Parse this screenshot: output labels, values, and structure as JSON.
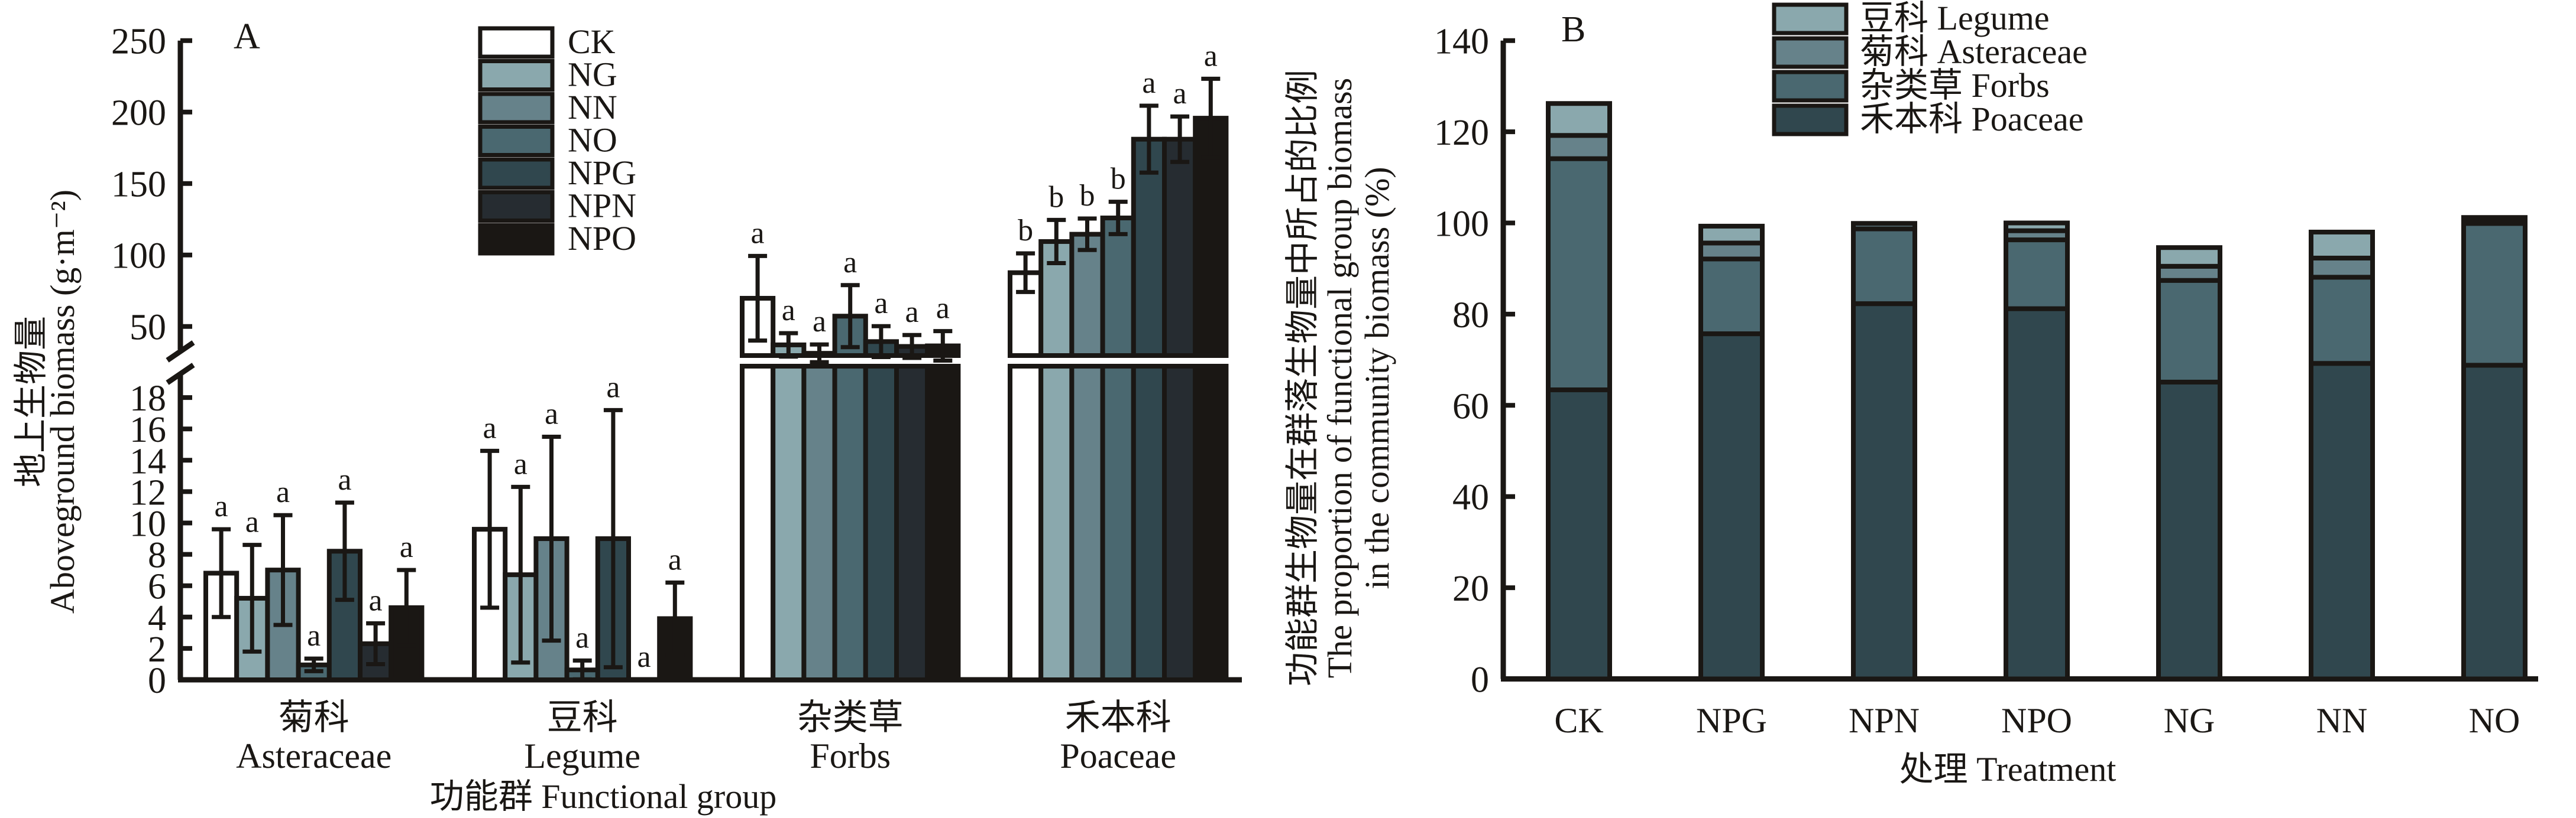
{
  "chart_data": [
    {
      "panel": "A",
      "type": "bar",
      "title": "A",
      "xlabel": "功能群 Functional group",
      "ylabel_cn": "地上生物量",
      "ylabel_en": "Aboveground biomass (g·m⁻²)",
      "y_axis_broken": true,
      "ylim_lower": [
        0,
        18
      ],
      "ylim_upper": [
        30,
        250
      ],
      "yticks_lower": [
        "0",
        "2",
        "4",
        "6",
        "8",
        "10",
        "12",
        "14",
        "16",
        "18"
      ],
      "yticks_upper": [
        "50",
        "100",
        "150",
        "200",
        "250"
      ],
      "legend_position": "top-center",
      "categories": [
        {
          "cn": "菊科",
          "en": "Asteraceae"
        },
        {
          "cn": "豆科",
          "en": "Legume"
        },
        {
          "cn": "杂类草",
          "en": "Forbs"
        },
        {
          "cn": "禾本科",
          "en": "Poaceae"
        }
      ],
      "series": [
        {
          "name": "CK",
          "color": "#ffffff",
          "values": [
            6.8,
            9.6,
            69.7,
            87.6
          ],
          "se": [
            2.8,
            5.0,
            29.6,
            13.5
          ],
          "letters": [
            "a",
            "a",
            "a",
            "b"
          ]
        },
        {
          "name": "NG",
          "color": "#8aa8ad",
          "values": [
            5.2,
            6.7,
            37.1,
            109.4
          ],
          "se": [
            3.4,
            5.6,
            8.2,
            15.1
          ],
          "letters": [
            "a",
            "a",
            "a",
            "b"
          ]
        },
        {
          "name": "NN",
          "color": "#66828a",
          "values": [
            7.0,
            9.0,
            31.2,
            114.5
          ],
          "se": [
            3.5,
            6.5,
            6.2,
            11.0
          ],
          "letters": [
            "a",
            "a",
            "a",
            "b"
          ]
        },
        {
          "name": "NO",
          "color": "#4a6870",
          "values": [
            0.95,
            0.63,
            57.2,
            125.9
          ],
          "se": [
            0.4,
            0.6,
            21.7,
            11.3
          ],
          "letters": [
            "a",
            "a",
            "a",
            "b"
          ]
        },
        {
          "name": "NPG",
          "color": "#30474e",
          "values": [
            8.2,
            9.0,
            39.4,
            181.0
          ],
          "se": [
            3.1,
            8.2,
            10.8,
            23.4
          ],
          "letters": [
            "a",
            "a",
            "a",
            "a"
          ]
        },
        {
          "name": "NPN",
          "color": "#262c31",
          "values": [
            2.3,
            0,
            36.0,
            181.0
          ],
          "se": [
            1.3,
            0,
            8.0,
            15.9
          ],
          "letters": [
            "a",
            "a",
            "a",
            "a"
          ]
        },
        {
          "name": "NPO",
          "color": "#1a1714",
          "values": [
            4.6,
            3.9,
            36.4,
            195.7
          ],
          "se": [
            2.4,
            2.3,
            10.3,
            27.6
          ],
          "letters": [
            "a",
            "a",
            "a",
            "a"
          ]
        }
      ]
    },
    {
      "panel": "B",
      "type": "bar",
      "stacked": true,
      "title": "B",
      "xlabel": "处理 Treatment",
      "ylabel_cn": "功能群生物量在群落生物量中所占的比例",
      "ylabel_en_1": "The proportion of functional group biomass",
      "ylabel_en_2": "in the community biomass (%)",
      "ylim": [
        0,
        140
      ],
      "yticks": [
        "0",
        "20",
        "40",
        "60",
        "80",
        "100",
        "120",
        "140"
      ],
      "legend_position": "top-center",
      "categories": [
        "CK",
        "NPG",
        "NPN",
        "NPO",
        "NG",
        "NN",
        "NO"
      ],
      "series": [
        {
          "name_cn": "禾本科",
          "name_en": "Poaceae",
          "color": "#30474e",
          "values": [
            63.4,
            75.7,
            82.3,
            81.2,
            65.1,
            69.2,
            68.8
          ]
        },
        {
          "name_cn": "杂类草",
          "name_en": "Forbs",
          "color": "#4a6870",
          "values": [
            50.7,
            16.4,
            16.4,
            15.1,
            22.3,
            18.9,
            31.1
          ]
        },
        {
          "name_cn": "菊科",
          "name_en": "Asteraceae",
          "color": "#66828a",
          "values": [
            5.1,
            3.5,
            1.2,
            2.0,
            3.1,
            4.2,
            0.3
          ]
        },
        {
          "name_cn": "豆科",
          "name_en": "Legume",
          "color": "#8aa8ad",
          "values": [
            7.0,
            3.7,
            0.0,
            1.7,
            4.1,
            5.7,
            1.0
          ]
        }
      ],
      "legend_order": [
        "Legume",
        "Asteraceae",
        "Forbs",
        "Poaceae"
      ]
    }
  ]
}
